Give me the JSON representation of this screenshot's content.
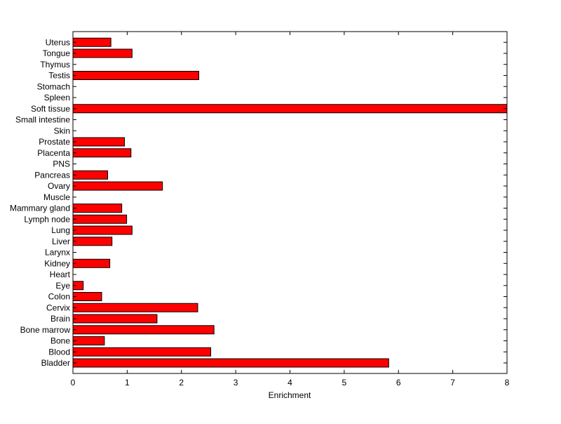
{
  "chart_data": {
    "type": "bar",
    "orientation": "horizontal",
    "title": "",
    "xlabel": "Enrichment",
    "ylabel": "",
    "xlim": [
      0,
      8
    ],
    "xticks": [
      "0",
      "1",
      "2",
      "3",
      "4",
      "5",
      "6",
      "7",
      "8"
    ],
    "grid": false,
    "legend": "none",
    "bar_color": "#ff0000",
    "bar_edge_color": "#000000",
    "categories": [
      "Bladder",
      "Blood",
      "Bone",
      "Bone marrow",
      "Brain",
      "Cervix",
      "Colon",
      "Eye",
      "Heart",
      "Kidney",
      "Larynx",
      "Liver",
      "Lung",
      "Lymph node",
      "Mammary gland",
      "Muscle",
      "Ovary",
      "Pancreas",
      "PNS",
      "Placenta",
      "Prostate",
      "Skin",
      "Small intestine",
      "Soft tissue",
      "Spleen",
      "Stomach",
      "Testis",
      "Thymus",
      "Tongue",
      "Uterus"
    ],
    "values": [
      5.82,
      2.54,
      0.58,
      2.6,
      1.55,
      2.3,
      0.53,
      0.19,
      0,
      0.68,
      0,
      0.72,
      1.09,
      0.99,
      0.9,
      0,
      1.65,
      0.64,
      0,
      1.07,
      0.95,
      0,
      0,
      8.0,
      0,
      0,
      2.32,
      0,
      1.09,
      0.7
    ]
  }
}
